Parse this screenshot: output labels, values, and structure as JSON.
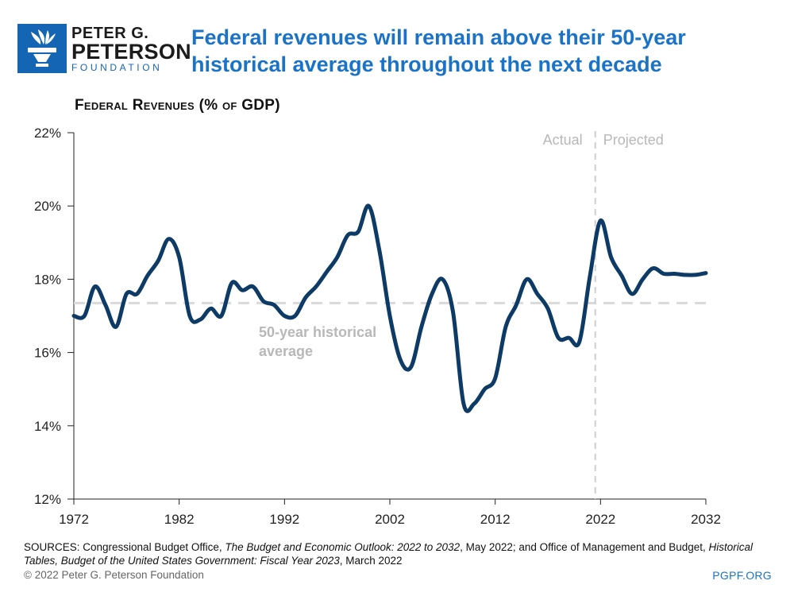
{
  "logo": {
    "line1": "PETER G.",
    "line2": "PETERSON",
    "line3": "FOUNDATION"
  },
  "headline": "Federal revenues will remain above their 50-year historical average throughout the next decade",
  "colors": {
    "series": "#0d3b66",
    "reference": "#d9d9d9",
    "annotation": "#b8b8b8",
    "headline": "#1a73c7",
    "brand": "#1565b5"
  },
  "chart_data": {
    "type": "line",
    "title": "Federal Revenues (% of GDP)",
    "xlabel": "",
    "ylabel": "",
    "xlim": [
      1972,
      2032
    ],
    "ylim": [
      12,
      22
    ],
    "x_ticks": [
      1972,
      1982,
      1992,
      2002,
      2012,
      2022,
      2032
    ],
    "y_ticks": [
      12,
      14,
      16,
      18,
      20,
      22
    ],
    "y_tick_labels": [
      "12%",
      "14%",
      "16%",
      "18%",
      "20%",
      "22%"
    ],
    "series": [
      {
        "name": "Federal revenues",
        "x": [
          1972,
          1973,
          1974,
          1975,
          1976,
          1977,
          1978,
          1979,
          1980,
          1981,
          1982,
          1983,
          1984,
          1985,
          1986,
          1987,
          1988,
          1989,
          1990,
          1991,
          1992,
          1993,
          1994,
          1995,
          1996,
          1997,
          1998,
          1999,
          2000,
          2001,
          2002,
          2003,
          2004,
          2005,
          2006,
          2007,
          2008,
          2009,
          2010,
          2011,
          2012,
          2013,
          2014,
          2015,
          2016,
          2017,
          2018,
          2019,
          2020,
          2021,
          2022,
          2023,
          2024,
          2025,
          2026,
          2027,
          2028,
          2029,
          2030,
          2031,
          2032
        ],
        "values": [
          17.0,
          17.0,
          17.8,
          17.3,
          16.7,
          17.6,
          17.6,
          18.1,
          18.5,
          19.1,
          18.6,
          17.0,
          16.9,
          17.2,
          17.0,
          17.9,
          17.7,
          17.8,
          17.4,
          17.3,
          17.0,
          17.0,
          17.5,
          17.8,
          18.2,
          18.6,
          19.2,
          19.3,
          20.0,
          18.8,
          17.0,
          15.8,
          15.6,
          16.7,
          17.6,
          18.0,
          17.1,
          14.6,
          14.6,
          15.0,
          15.3,
          16.7,
          17.3,
          18.0,
          17.6,
          17.2,
          16.4,
          16.4,
          16.3,
          18.1,
          19.6,
          18.6,
          18.1,
          17.6,
          18.0,
          18.3,
          18.15,
          18.15,
          18.12,
          18.12,
          18.17
        ]
      }
    ],
    "reference_lines": [
      {
        "name": "50-year historical average",
        "value": 17.35
      }
    ],
    "divider": {
      "x": 2021.5,
      "left_label": "Actual",
      "right_label": "Projected"
    },
    "annotations": [
      {
        "line1": "50-year historical",
        "line2": "average"
      }
    ]
  },
  "sources": {
    "prefix": "SOURCES: Congressional Budget Office, ",
    "cbo_title": "The Budget and Economic Outlook: 2022 to 2032",
    "mid": ", May 2022; and Office of Management and Budget, ",
    "omb_title": "Historical Tables, Budget of the United States Government: Fiscal Year 2023",
    "suffix": ", March 2022"
  },
  "footer": {
    "copyright": "© 2022 Peter G. Peterson Foundation",
    "site": "PGPF.ORG"
  }
}
